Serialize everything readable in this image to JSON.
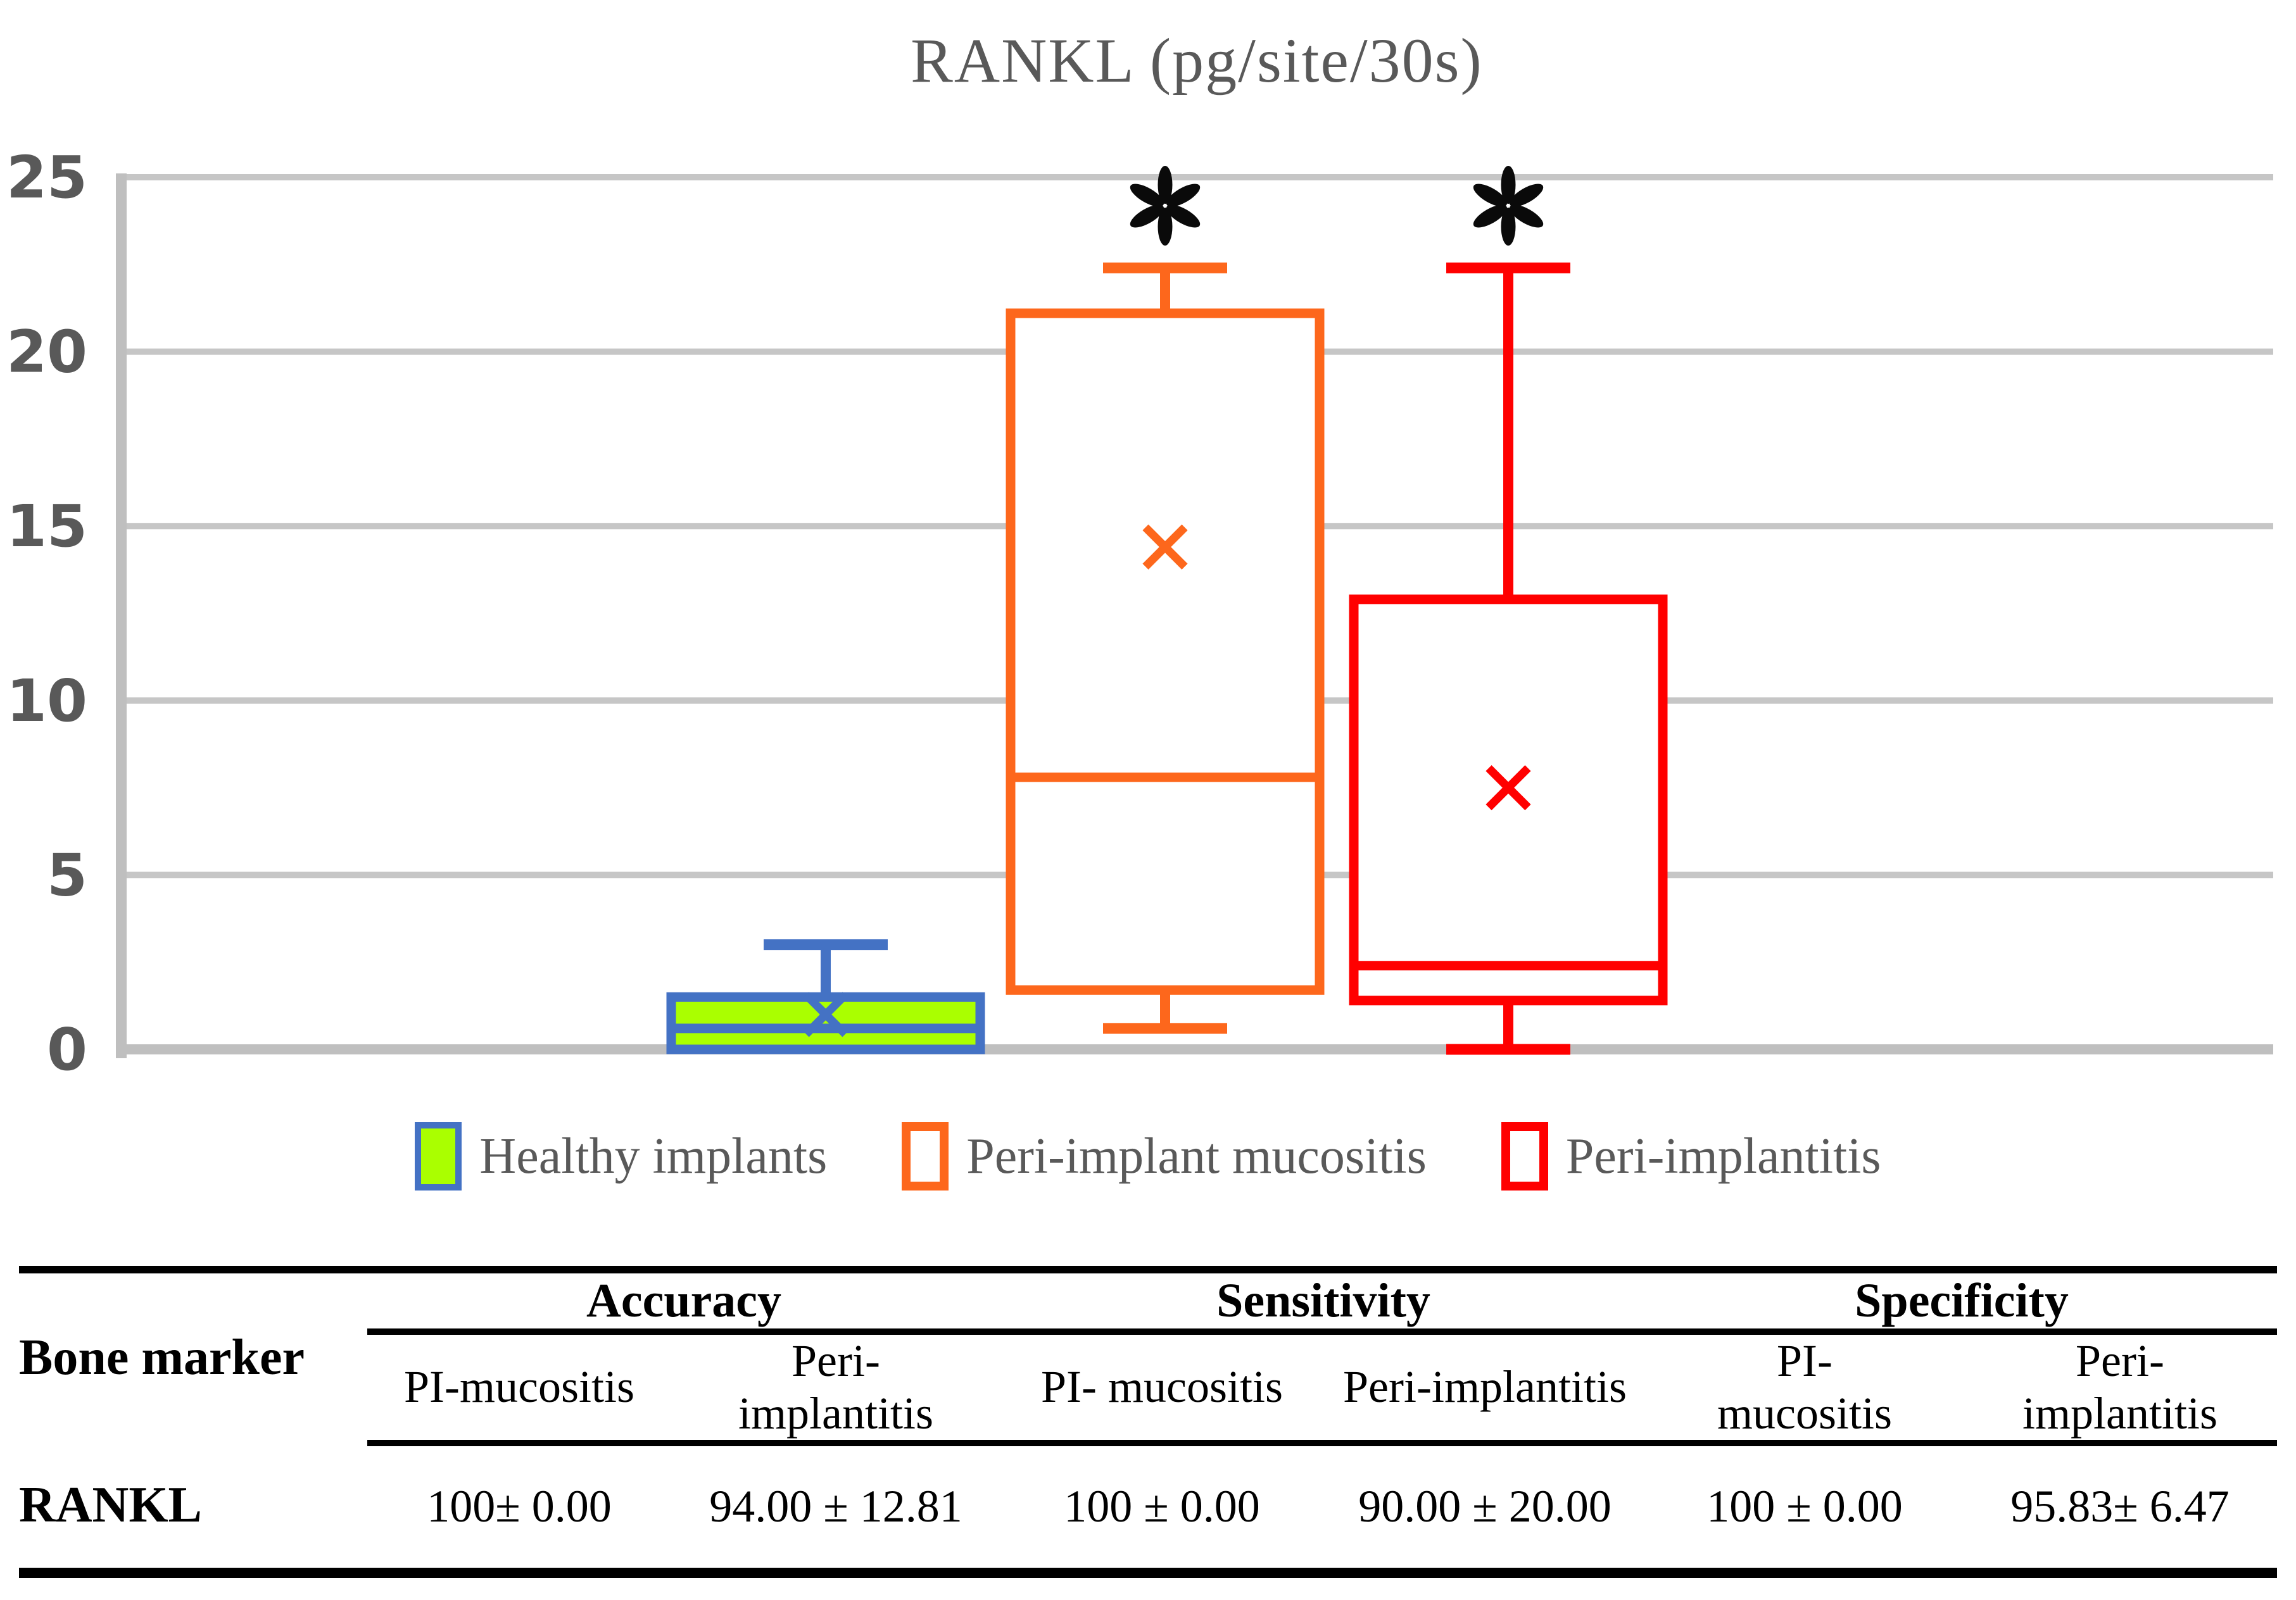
{
  "figure": {
    "title": "RANKL (pg/site/30s)"
  },
  "chart_data": {
    "type": "box",
    "title": "RANKL (pg/site/30s)",
    "xlabel": "",
    "ylabel": "",
    "ylim": [
      0,
      25
    ],
    "yticks": [
      0,
      5,
      10,
      15,
      20,
      25
    ],
    "grid": true,
    "legend_position": "bottom",
    "categories": [
      "Healthy implants",
      "Peri-implant mucositis",
      "Peri-implantitis"
    ],
    "series": [
      {
        "name": "Healthy implants",
        "fill": "#AAFF00",
        "border": "#4472C4",
        "min": 0,
        "q1": 0,
        "median": 0.6,
        "q3": 1.5,
        "max": 3.0,
        "mean": 1.0,
        "significant": false
      },
      {
        "name": "Peri-implant mucositis",
        "fill": "#FFFFFF",
        "border": "#FD671C",
        "min": 0.6,
        "q1": 1.7,
        "median": 7.8,
        "q3": 21.1,
        "max": 22.4,
        "mean": 14.4,
        "significant": true
      },
      {
        "name": "Peri-implantitis",
        "fill": "#FFFFFF",
        "border": "#FF0000",
        "min": 0.0,
        "q1": 1.4,
        "median": 2.4,
        "q3": 12.9,
        "max": 22.4,
        "mean": 7.5,
        "significant": true
      }
    ],
    "significance_symbol": "*",
    "axis_color": "#BFBFBF",
    "gridline_color": "#C6C6C6",
    "text_color": "#595959"
  },
  "table": {
    "row_header_label": "Bone marker",
    "groups": [
      {
        "label": "Accuracy",
        "subcols": [
          "PI-mucositis",
          "Peri-\nimplantitis"
        ]
      },
      {
        "label": "Sensitivity",
        "subcols": [
          "PI- mucositis",
          "Peri-implantitis"
        ]
      },
      {
        "label": "Specificity",
        "subcols": [
          "PI-\nmucositis",
          "Peri-\nimplantitis"
        ]
      }
    ],
    "rows": [
      {
        "marker": "RANKL",
        "values": [
          "100± 0.00",
          "94.00 ± 12.81",
          "100 ± 0.00",
          "90.00 ± 20.00",
          "100 ± 0.00",
          "95.83± 6.47"
        ]
      }
    ]
  }
}
